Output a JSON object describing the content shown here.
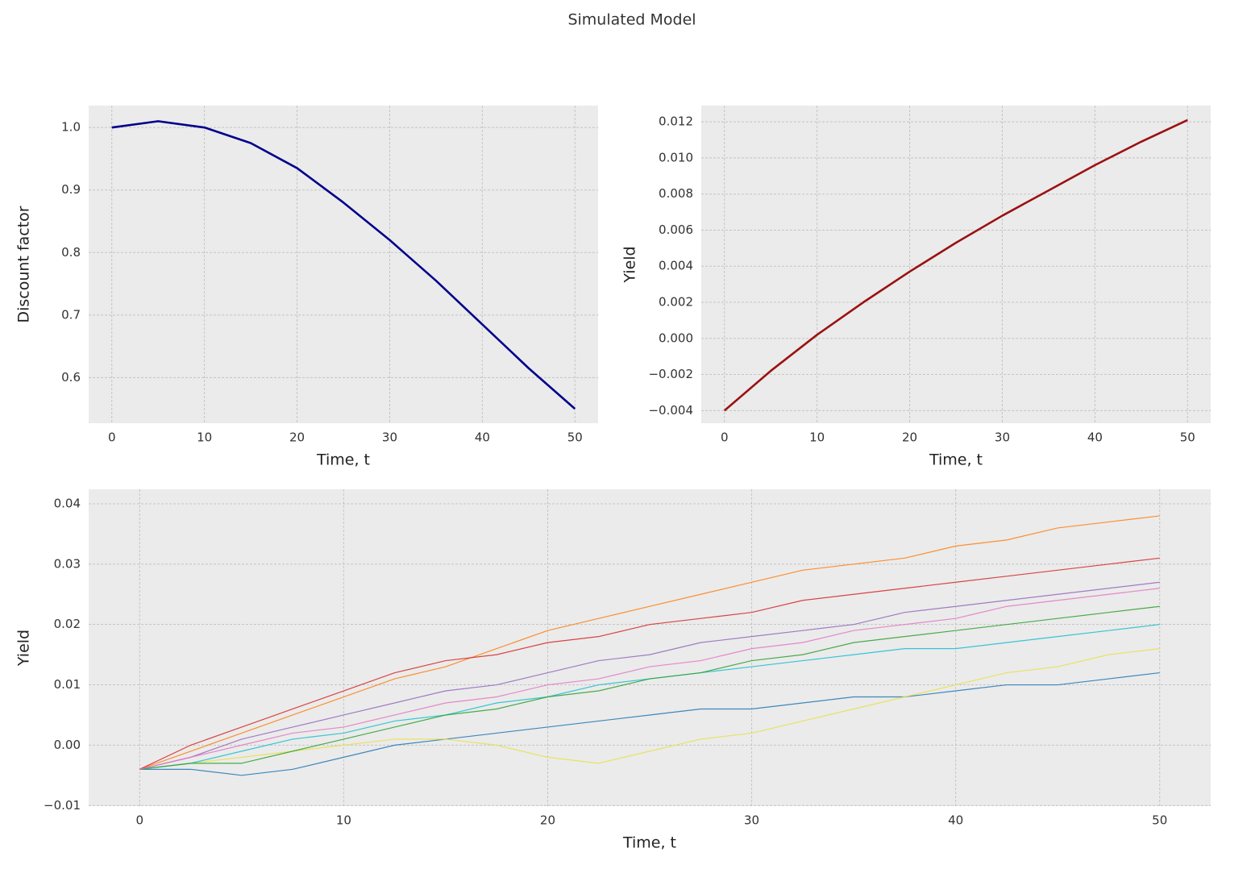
{
  "title": "Simulated Model",
  "chart_data": [
    {
      "type": "line",
      "xlabel": "Time, t",
      "ylabel": "Discount factor",
      "x": [
        0,
        5,
        10,
        15,
        20,
        25,
        30,
        35,
        40,
        45,
        50
      ],
      "series": [
        {
          "color": "#00008b",
          "values": [
            1.0,
            1.01,
            1.0,
            0.975,
            0.935,
            0.88,
            0.82,
            0.755,
            0.685,
            0.615,
            0.55
          ]
        }
      ],
      "xlim": [
        -2.5,
        52.5
      ],
      "ylim": [
        0.527,
        1.035
      ],
      "xticks": [
        0,
        10,
        20,
        30,
        40,
        50
      ],
      "yticks": [
        0.6,
        0.7,
        0.8,
        0.9,
        {
          "value": 1,
          "label": "1.0"
        }
      ],
      "grid": true
    },
    {
      "type": "line",
      "xlabel": "Time, t",
      "ylabel": "Yield",
      "x": [
        0,
        5,
        10,
        15,
        20,
        25,
        30,
        35,
        40,
        45,
        50
      ],
      "series": [
        {
          "color": "#9b1111",
          "values": [
            -0.004,
            -0.0018,
            0.0002,
            0.002,
            0.0037,
            0.0053,
            0.0068,
            0.0082,
            0.0096,
            0.0109,
            0.0121
          ]
        }
      ],
      "xlim": [
        -2.5,
        52.5
      ],
      "ylim": [
        -0.0047,
        0.0129
      ],
      "xticks": [
        0,
        10,
        20,
        30,
        40,
        50
      ],
      "yticks": [
        {
          "value": -0.004,
          "label": "−0.004"
        },
        {
          "value": -0.002,
          "label": "−0.002"
        },
        {
          "value": 0,
          "label": "0.000"
        },
        0.002,
        0.004,
        0.006,
        0.008,
        {
          "value": 0.01,
          "label": "0.010"
        },
        0.012
      ],
      "grid": true
    },
    {
      "type": "line",
      "xlabel": "Time, t",
      "ylabel": "Yield",
      "x": [
        0,
        2.5,
        5,
        7.5,
        10,
        12.5,
        15,
        17.5,
        20,
        22.5,
        25,
        27.5,
        30,
        32.5,
        35,
        37.5,
        40,
        42.5,
        45,
        47.5,
        50
      ],
      "series": [
        {
          "color": "#ff7f0e",
          "values": [
            -0.004,
            -0.001,
            0.002,
            0.005,
            0.008,
            0.011,
            0.013,
            0.016,
            0.019,
            0.021,
            0.023,
            0.025,
            0.027,
            0.029,
            0.03,
            0.031,
            0.033,
            0.034,
            0.036,
            0.037,
            0.038
          ]
        },
        {
          "color": "#1f77b4",
          "values": [
            -0.004,
            -0.004,
            -0.005,
            -0.004,
            -0.002,
            0.0,
            0.001,
            0.002,
            0.003,
            0.004,
            0.005,
            0.006,
            0.006,
            0.007,
            0.008,
            0.008,
            0.009,
            0.01,
            0.01,
            0.011,
            0.012
          ]
        },
        {
          "color": "#e8e04a",
          "values": [
            -0.004,
            -0.003,
            -0.002,
            -0.001,
            0.0,
            0.001,
            0.001,
            0.0,
            -0.002,
            -0.003,
            -0.001,
            0.001,
            0.002,
            0.004,
            0.006,
            0.008,
            0.01,
            0.012,
            0.013,
            0.015,
            0.016
          ]
        },
        {
          "color": "#9467bd",
          "values": [
            -0.004,
            -0.002,
            0.001,
            0.003,
            0.005,
            0.007,
            0.009,
            0.01,
            0.012,
            0.014,
            0.015,
            0.017,
            0.018,
            0.019,
            0.02,
            0.022,
            0.023,
            0.024,
            0.025,
            0.026,
            0.027
          ]
        },
        {
          "color": "#17becf",
          "values": [
            -0.004,
            -0.003,
            -0.001,
            0.001,
            0.002,
            0.004,
            0.005,
            0.007,
            0.008,
            0.01,
            0.011,
            0.012,
            0.013,
            0.014,
            0.015,
            0.016,
            0.016,
            0.017,
            0.018,
            0.019,
            0.02
          ]
        },
        {
          "color": "#d62728",
          "values": [
            -0.004,
            0.0,
            0.003,
            0.006,
            0.009,
            0.012,
            0.014,
            0.015,
            0.017,
            0.018,
            0.02,
            0.021,
            0.022,
            0.024,
            0.025,
            0.026,
            0.027,
            0.028,
            0.029,
            0.03,
            0.031
          ]
        },
        {
          "color": "#2ca02c",
          "values": [
            -0.004,
            -0.003,
            -0.003,
            -0.001,
            0.001,
            0.003,
            0.005,
            0.006,
            0.008,
            0.009,
            0.011,
            0.012,
            0.014,
            0.015,
            0.017,
            0.018,
            0.019,
            0.02,
            0.021,
            0.022,
            0.023
          ]
        },
        {
          "color": "#e377c2",
          "values": [
            -0.004,
            -0.002,
            0.0,
            0.002,
            0.003,
            0.005,
            0.007,
            0.008,
            0.01,
            0.011,
            0.013,
            0.014,
            0.016,
            0.017,
            0.019,
            0.02,
            0.021,
            0.023,
            0.024,
            0.025,
            0.026
          ]
        }
      ],
      "xlim": [
        -2.5,
        52.5
      ],
      "ylim": [
        -0.0101,
        0.0424
      ],
      "xticks": [
        0,
        10,
        20,
        30,
        40,
        50
      ],
      "yticks": [
        {
          "value": -0.01,
          "label": "−0.01"
        },
        {
          "value": 0,
          "label": "0.00"
        },
        0.01,
        0.02,
        0.03,
        0.04
      ],
      "grid": true
    }
  ]
}
